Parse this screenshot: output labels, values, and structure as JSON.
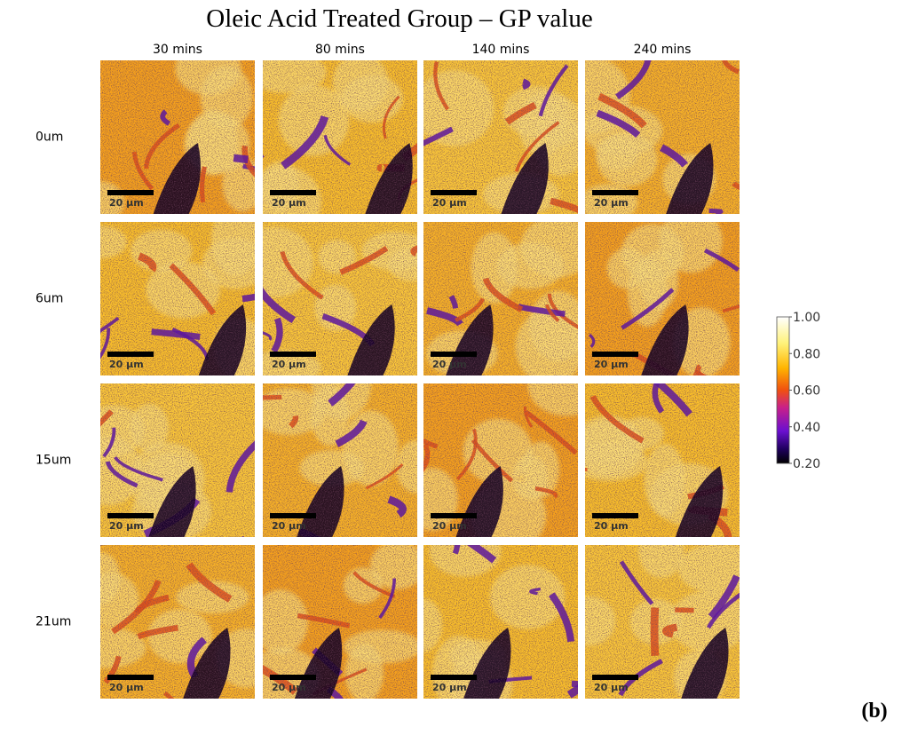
{
  "title": "Oleic Acid Treated Group – GP value",
  "columns": [
    "30 mins",
    "80 mins",
    "140 mins",
    "240 mins"
  ],
  "rows": [
    "0um",
    "6um",
    "15um",
    "21um"
  ],
  "panels": [
    [
      "20 µm",
      "20 µm",
      "20 µm",
      "20 µm"
    ],
    [
      "20 µm",
      "20 µm",
      "20 µm",
      "20 µm"
    ],
    [
      "20 µm",
      "20 µm",
      "20 µm",
      "20 µm"
    ],
    [
      "20 µm",
      "20 µm",
      "20 µm",
      "20 µm"
    ]
  ],
  "colorbar": {
    "ticks": [
      {
        "value": 1,
        "label": "1.00"
      },
      {
        "value": 0.8,
        "label": "0.80"
      },
      {
        "value": 0.6,
        "label": "0.60"
      },
      {
        "value": 0.4,
        "label": "0.40"
      },
      {
        "value": 0.2,
        "label": "0.20"
      }
    ]
  },
  "panel_label": "(b)"
}
